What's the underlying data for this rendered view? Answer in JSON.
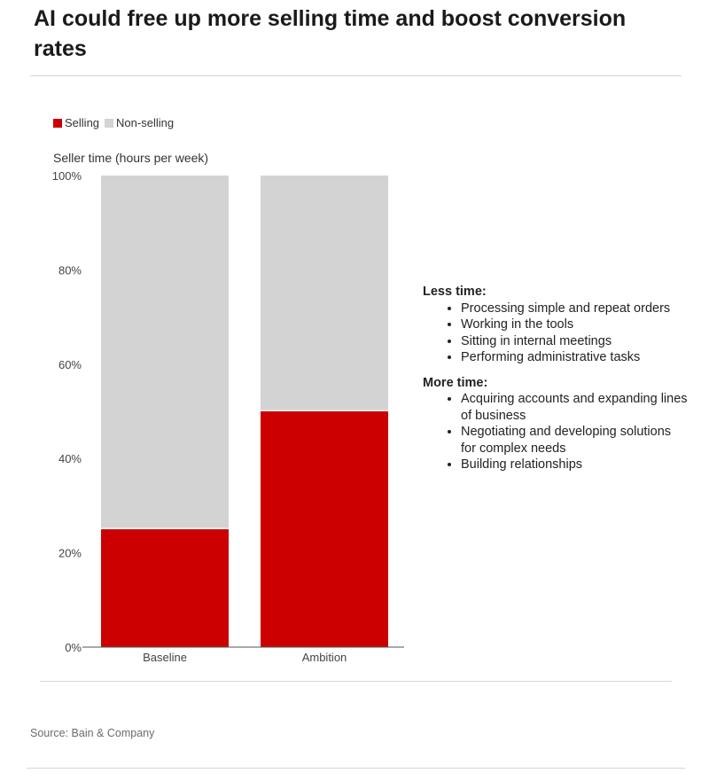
{
  "title": "AI could free up more selling time and boost conversion rates",
  "legend": [
    {
      "label": "Selling",
      "color": "#cc0000"
    },
    {
      "label": "Non-selling",
      "color": "#d3d3d3"
    }
  ],
  "chart_data": {
    "type": "bar",
    "stacked": true,
    "categories": [
      "Baseline",
      "Ambition"
    ],
    "series": [
      {
        "name": "Selling",
        "color": "#cc0000",
        "values": [
          25,
          50
        ]
      },
      {
        "name": "Non-selling",
        "color": "#d3d3d3",
        "values": [
          75,
          50
        ]
      }
    ],
    "ylabel": "Seller time (hours per week)",
    "xlabel": "",
    "ylim": [
      0,
      100
    ],
    "yticks": [
      "0%",
      "20%",
      "40%",
      "60%",
      "80%",
      "100%"
    ],
    "ytick_values": [
      0,
      20,
      40,
      60,
      80,
      100
    ],
    "grid": false,
    "legend_position": "top-left"
  },
  "notes": [
    {
      "heading": "Less time:",
      "items": [
        "Processing simple and repeat orders",
        "Working in the tools",
        "Sitting in internal meetings",
        "Performing administrative tasks"
      ]
    },
    {
      "heading": "More time:",
      "items": [
        "Acquiring accounts and expanding lines of business",
        "Negotiating and developing solutions for complex needs",
        "Building relationships"
      ]
    }
  ],
  "source": "Source: Bain & Company"
}
